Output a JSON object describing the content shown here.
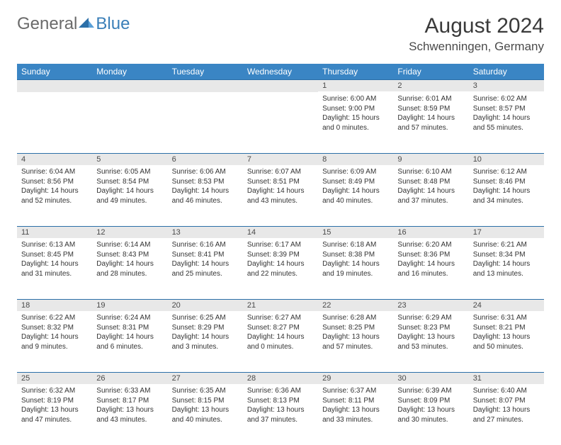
{
  "logo": {
    "general": "General",
    "blue": "Blue"
  },
  "title": "August 2024",
  "location": "Schwenningen, Germany",
  "colors": {
    "header_bg": "#3a85c4",
    "header_text": "#ffffff",
    "daynum_bg": "#e8e8e8",
    "border_top": "#2b6fa8",
    "text": "#333333",
    "logo_gray": "#6a6a6a",
    "logo_blue": "#3a7fb8"
  },
  "day_headers": [
    "Sunday",
    "Monday",
    "Tuesday",
    "Wednesday",
    "Thursday",
    "Friday",
    "Saturday"
  ],
  "weeks": [
    [
      null,
      null,
      null,
      null,
      {
        "n": "1",
        "sunrise": "6:00 AM",
        "sunset": "9:00 PM",
        "daylight": "15 hours and 0 minutes."
      },
      {
        "n": "2",
        "sunrise": "6:01 AM",
        "sunset": "8:59 PM",
        "daylight": "14 hours and 57 minutes."
      },
      {
        "n": "3",
        "sunrise": "6:02 AM",
        "sunset": "8:57 PM",
        "daylight": "14 hours and 55 minutes."
      }
    ],
    [
      {
        "n": "4",
        "sunrise": "6:04 AM",
        "sunset": "8:56 PM",
        "daylight": "14 hours and 52 minutes."
      },
      {
        "n": "5",
        "sunrise": "6:05 AM",
        "sunset": "8:54 PM",
        "daylight": "14 hours and 49 minutes."
      },
      {
        "n": "6",
        "sunrise": "6:06 AM",
        "sunset": "8:53 PM",
        "daylight": "14 hours and 46 minutes."
      },
      {
        "n": "7",
        "sunrise": "6:07 AM",
        "sunset": "8:51 PM",
        "daylight": "14 hours and 43 minutes."
      },
      {
        "n": "8",
        "sunrise": "6:09 AM",
        "sunset": "8:49 PM",
        "daylight": "14 hours and 40 minutes."
      },
      {
        "n": "9",
        "sunrise": "6:10 AM",
        "sunset": "8:48 PM",
        "daylight": "14 hours and 37 minutes."
      },
      {
        "n": "10",
        "sunrise": "6:12 AM",
        "sunset": "8:46 PM",
        "daylight": "14 hours and 34 minutes."
      }
    ],
    [
      {
        "n": "11",
        "sunrise": "6:13 AM",
        "sunset": "8:45 PM",
        "daylight": "14 hours and 31 minutes."
      },
      {
        "n": "12",
        "sunrise": "6:14 AM",
        "sunset": "8:43 PM",
        "daylight": "14 hours and 28 minutes."
      },
      {
        "n": "13",
        "sunrise": "6:16 AM",
        "sunset": "8:41 PM",
        "daylight": "14 hours and 25 minutes."
      },
      {
        "n": "14",
        "sunrise": "6:17 AM",
        "sunset": "8:39 PM",
        "daylight": "14 hours and 22 minutes."
      },
      {
        "n": "15",
        "sunrise": "6:18 AM",
        "sunset": "8:38 PM",
        "daylight": "14 hours and 19 minutes."
      },
      {
        "n": "16",
        "sunrise": "6:20 AM",
        "sunset": "8:36 PM",
        "daylight": "14 hours and 16 minutes."
      },
      {
        "n": "17",
        "sunrise": "6:21 AM",
        "sunset": "8:34 PM",
        "daylight": "14 hours and 13 minutes."
      }
    ],
    [
      {
        "n": "18",
        "sunrise": "6:22 AM",
        "sunset": "8:32 PM",
        "daylight": "14 hours and 9 minutes."
      },
      {
        "n": "19",
        "sunrise": "6:24 AM",
        "sunset": "8:31 PM",
        "daylight": "14 hours and 6 minutes."
      },
      {
        "n": "20",
        "sunrise": "6:25 AM",
        "sunset": "8:29 PM",
        "daylight": "14 hours and 3 minutes."
      },
      {
        "n": "21",
        "sunrise": "6:27 AM",
        "sunset": "8:27 PM",
        "daylight": "14 hours and 0 minutes."
      },
      {
        "n": "22",
        "sunrise": "6:28 AM",
        "sunset": "8:25 PM",
        "daylight": "13 hours and 57 minutes."
      },
      {
        "n": "23",
        "sunrise": "6:29 AM",
        "sunset": "8:23 PM",
        "daylight": "13 hours and 53 minutes."
      },
      {
        "n": "24",
        "sunrise": "6:31 AM",
        "sunset": "8:21 PM",
        "daylight": "13 hours and 50 minutes."
      }
    ],
    [
      {
        "n": "25",
        "sunrise": "6:32 AM",
        "sunset": "8:19 PM",
        "daylight": "13 hours and 47 minutes."
      },
      {
        "n": "26",
        "sunrise": "6:33 AM",
        "sunset": "8:17 PM",
        "daylight": "13 hours and 43 minutes."
      },
      {
        "n": "27",
        "sunrise": "6:35 AM",
        "sunset": "8:15 PM",
        "daylight": "13 hours and 40 minutes."
      },
      {
        "n": "28",
        "sunrise": "6:36 AM",
        "sunset": "8:13 PM",
        "daylight": "13 hours and 37 minutes."
      },
      {
        "n": "29",
        "sunrise": "6:37 AM",
        "sunset": "8:11 PM",
        "daylight": "13 hours and 33 minutes."
      },
      {
        "n": "30",
        "sunrise": "6:39 AM",
        "sunset": "8:09 PM",
        "daylight": "13 hours and 30 minutes."
      },
      {
        "n": "31",
        "sunrise": "6:40 AM",
        "sunset": "8:07 PM",
        "daylight": "13 hours and 27 minutes."
      }
    ]
  ],
  "labels": {
    "sunrise": "Sunrise: ",
    "sunset": "Sunset: ",
    "daylight": "Daylight: "
  }
}
